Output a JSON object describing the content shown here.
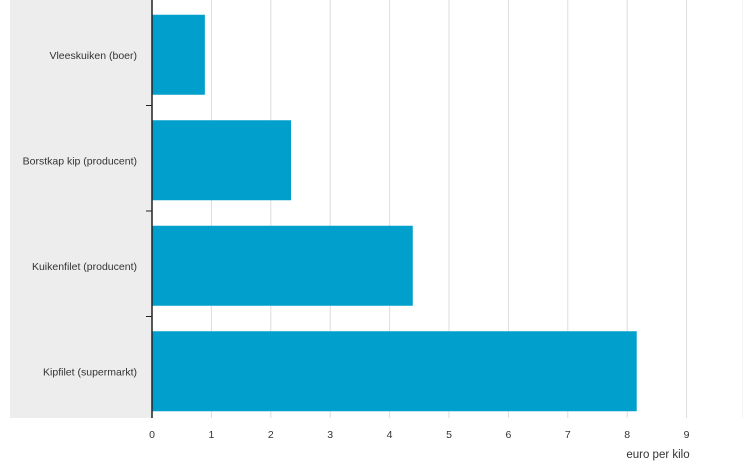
{
  "chart_data": {
    "type": "bar",
    "orientation": "horizontal",
    "categories": [
      "Vleeskuiken (boer)",
      "Borstkap kip (producent)",
      "Kuikenfilet (producent)",
      "Kipfilet (supermarkt)"
    ],
    "values": [
      0.89,
      2.34,
      4.39,
      8.16
    ],
    "xlabel": "euro per kilo",
    "xlim": [
      0,
      9.7
    ],
    "xticks": [
      "0",
      "1",
      "2",
      "3",
      "4",
      "5",
      "6",
      "7",
      "8",
      "9"
    ],
    "grid": true,
    "colors": {
      "bar": "#009fcc",
      "label_panel": "#ededed",
      "gridline": "#dddddd",
      "axis": "#222222"
    }
  }
}
